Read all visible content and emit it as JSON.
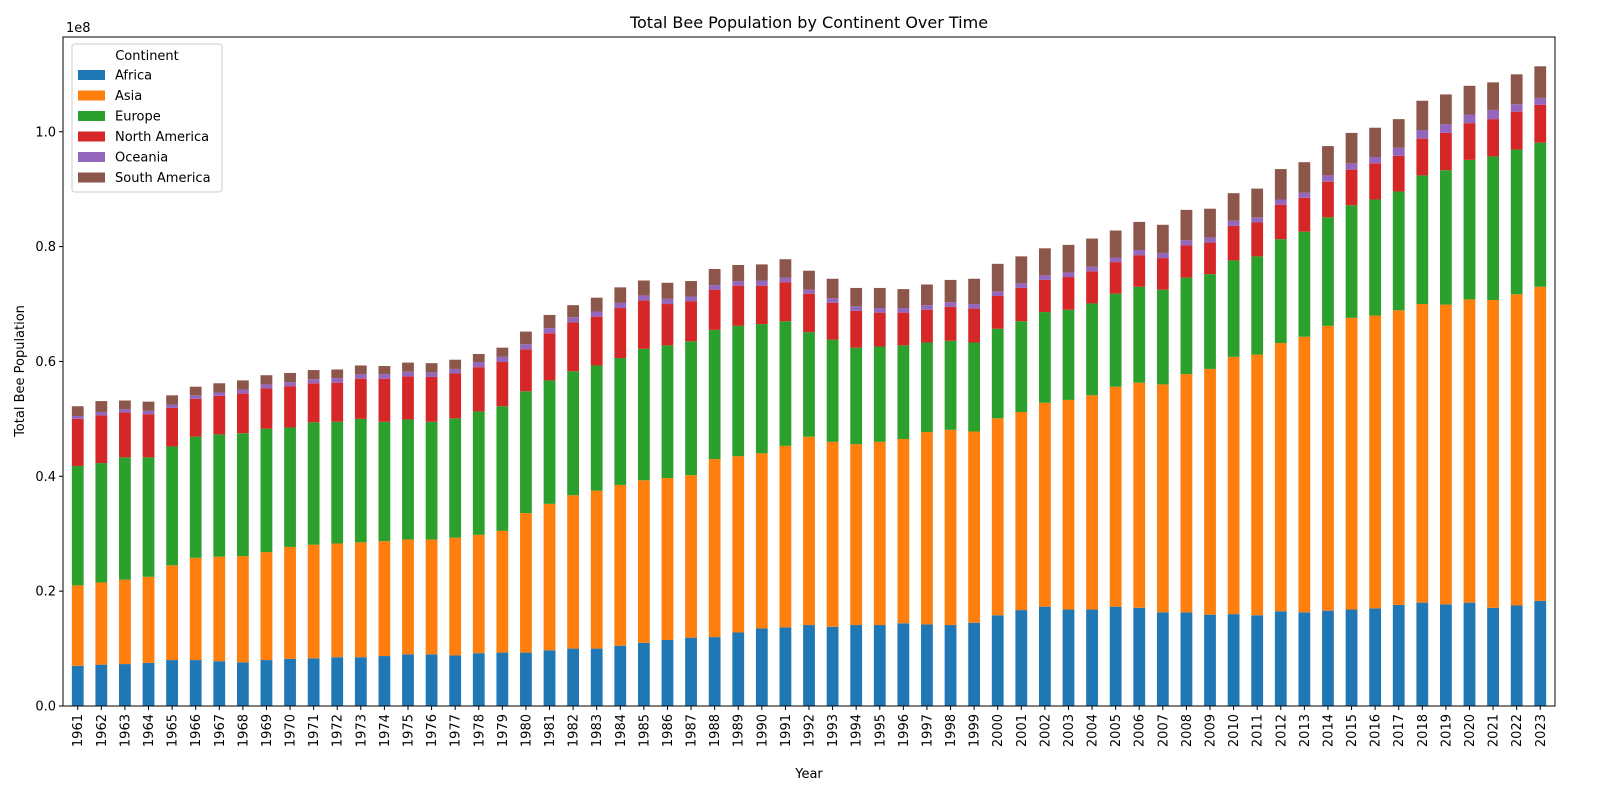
{
  "chart_data": {
    "type": "bar",
    "stacked": true,
    "title": "Total Bee Population by Continent Over Time",
    "xlabel": "Year",
    "ylabel": "Total Bee Population",
    "y_offset_label": "1e8",
    "ylim": [
      0,
      116500000
    ],
    "y_ticks": [
      0,
      20000000,
      40000000,
      60000000,
      80000000,
      100000000
    ],
    "y_tick_labels": [
      "0.0",
      "0.2",
      "0.4",
      "0.6",
      "0.8",
      "1.0"
    ],
    "legend": {
      "title": "Continent",
      "position": "top-left"
    },
    "grid": false,
    "categories": [
      "1961",
      "1962",
      "1963",
      "1964",
      "1965",
      "1966",
      "1967",
      "1968",
      "1969",
      "1970",
      "1971",
      "1972",
      "1973",
      "1974",
      "1975",
      "1976",
      "1977",
      "1978",
      "1979",
      "1980",
      "1981",
      "1982",
      "1983",
      "1984",
      "1985",
      "1986",
      "1987",
      "1988",
      "1989",
      "1990",
      "1991",
      "1992",
      "1993",
      "1994",
      "1995",
      "1996",
      "1997",
      "1998",
      "1999",
      "2000",
      "2001",
      "2002",
      "2003",
      "2004",
      "2005",
      "2006",
      "2007",
      "2008",
      "2009",
      "2010",
      "2011",
      "2012",
      "2013",
      "2014",
      "2015",
      "2016",
      "2017",
      "2018",
      "2019",
      "2020",
      "2021",
      "2022",
      "2023"
    ],
    "series": [
      {
        "name": "Africa",
        "color": "#1f77b4",
        "values": [
          7000000,
          7200000,
          7300000,
          7500000,
          8000000,
          8000000,
          7800000,
          7600000,
          8000000,
          8200000,
          8300000,
          8500000,
          8500000,
          8700000,
          9000000,
          9000000,
          8800000,
          9200000,
          9300000,
          9300000,
          9700000,
          10000000,
          10000000,
          10500000,
          11000000,
          11500000,
          11900000,
          12000000,
          12800000,
          13500000,
          13700000,
          14100000,
          13800000,
          14100000,
          14100000,
          14400000,
          14200000,
          14100000,
          14500000,
          15800000,
          16700000,
          17300000,
          16800000,
          16800000,
          17300000,
          17100000,
          16300000,
          16300000,
          15900000,
          16000000,
          15800000,
          16500000,
          16300000,
          16600000,
          16800000,
          17000000,
          17600000,
          18000000,
          17700000,
          18000000,
          17100000,
          17500000,
          18300000
        ]
      },
      {
        "name": "Asia",
        "color": "#ff7f0e",
        "values": [
          14000000,
          14300000,
          14700000,
          15000000,
          16500000,
          17800000,
          18200000,
          18500000,
          18800000,
          19500000,
          19800000,
          19800000,
          20000000,
          20000000,
          20000000,
          20000000,
          20500000,
          20600000,
          21200000,
          24300000,
          25500000,
          26700000,
          27500000,
          28000000,
          28300000,
          28200000,
          28300000,
          31000000,
          30700000,
          30500000,
          31600000,
          32800000,
          32200000,
          31500000,
          31900000,
          32100000,
          33500000,
          34000000,
          33300000,
          34300000,
          34500000,
          35500000,
          36500000,
          37300000,
          38300000,
          39200000,
          39700000,
          41500000,
          42800000,
          44800000,
          45400000,
          46700000,
          48000000,
          49600000,
          50800000,
          51000000,
          51300000,
          52000000,
          52200000,
          52800000,
          53600000,
          54200000,
          54700000
        ]
      },
      {
        "name": "Europe",
        "color": "#2ca02c",
        "values": [
          20800000,
          20800000,
          21300000,
          20800000,
          20700000,
          21100000,
          21300000,
          21400000,
          21500000,
          20800000,
          21300000,
          21200000,
          21500000,
          20800000,
          20900000,
          20500000,
          20800000,
          21500000,
          21700000,
          21200000,
          21500000,
          21600000,
          21800000,
          22100000,
          22900000,
          23100000,
          23300000,
          22500000,
          22700000,
          22500000,
          21700000,
          18200000,
          17800000,
          16800000,
          16600000,
          16300000,
          15600000,
          15500000,
          15500000,
          15600000,
          15800000,
          15800000,
          15700000,
          16000000,
          16200000,
          16700000,
          16500000,
          16800000,
          16500000,
          16800000,
          17100000,
          18100000,
          18300000,
          18900000,
          19600000,
          20200000,
          20700000,
          22400000,
          23400000,
          24300000,
          25000000,
          25200000,
          25100000
        ]
      },
      {
        "name": "North America",
        "color": "#d62728",
        "values": [
          8200000,
          8300000,
          7800000,
          7500000,
          6700000,
          6600000,
          6700000,
          6900000,
          7000000,
          7200000,
          6800000,
          6800000,
          7000000,
          7500000,
          7500000,
          7800000,
          7800000,
          7700000,
          7700000,
          7300000,
          8200000,
          8500000,
          8500000,
          8700000,
          8400000,
          7200000,
          7000000,
          7000000,
          7000000,
          6700000,
          6800000,
          6700000,
          6400000,
          6400000,
          5900000,
          5700000,
          5700000,
          5900000,
          5900000,
          5700000,
          5800000,
          5600000,
          5700000,
          5600000,
          5500000,
          5500000,
          5500000,
          5600000,
          5500000,
          6000000,
          5900000,
          6000000,
          5900000,
          6200000,
          6200000,
          6300000,
          6200000,
          6400000,
          6500000,
          6400000,
          6500000,
          6600000,
          6600000
        ]
      },
      {
        "name": "Oceania",
        "color": "#9467bd",
        "values": [
          500000,
          600000,
          600000,
          600000,
          600000,
          600000,
          600000,
          700000,
          700000,
          700000,
          700000,
          800000,
          800000,
          800000,
          800000,
          800000,
          800000,
          900000,
          900000,
          900000,
          900000,
          900000,
          900000,
          900000,
          900000,
          900000,
          800000,
          800000,
          800000,
          900000,
          800000,
          700000,
          800000,
          800000,
          800000,
          800000,
          800000,
          800000,
          800000,
          800000,
          800000,
          800000,
          800000,
          800000,
          800000,
          900000,
          900000,
          900000,
          900000,
          900000,
          900000,
          900000,
          900000,
          1100000,
          1100000,
          1100000,
          1400000,
          1500000,
          1500000,
          1500000,
          1600000,
          1300000,
          1200000
        ]
      },
      {
        "name": "South America",
        "color": "#8c564b",
        "values": [
          1700000,
          1900000,
          1500000,
          1600000,
          1600000,
          1500000,
          1600000,
          1600000,
          1600000,
          1600000,
          1600000,
          1500000,
          1500000,
          1400000,
          1600000,
          1600000,
          1600000,
          1400000,
          1600000,
          2200000,
          2300000,
          2100000,
          2400000,
          2700000,
          2600000,
          2800000,
          2700000,
          2800000,
          2800000,
          2800000,
          3200000,
          3300000,
          3400000,
          3200000,
          3500000,
          3300000,
          3600000,
          3900000,
          4400000,
          4800000,
          4700000,
          4700000,
          4800000,
          4900000,
          4700000,
          4900000,
          4900000,
          5300000,
          5000000,
          4800000,
          5000000,
          5300000,
          5300000,
          5100000,
          5300000,
          5100000,
          5000000,
          5100000,
          5200000,
          5000000,
          4800000,
          5200000,
          5500000
        ]
      }
    ]
  }
}
